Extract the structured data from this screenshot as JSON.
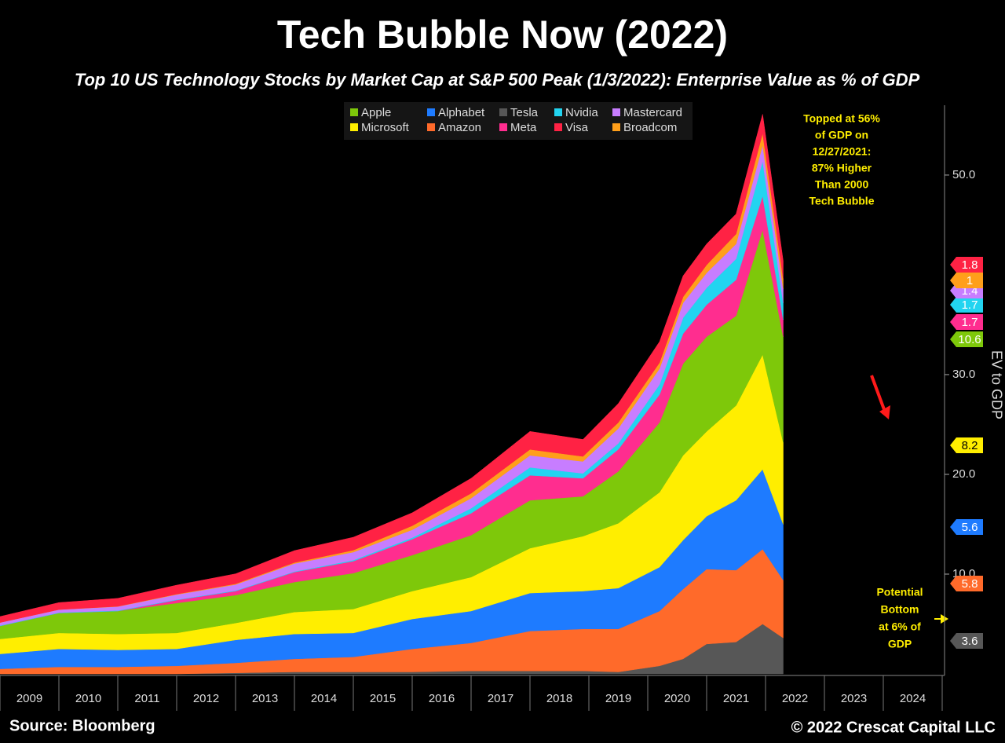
{
  "chart_data": {
    "type": "stacked_area",
    "title": "Tech Bubble Now (2022)",
    "subtitle": "Top 10 US Technology Stocks by Market Cap at S&P 500 Peak (1/3/2022): Enterprise Value as % of GDP",
    "y_axis_label": "EV to GDP",
    "source": "Source: Bloomberg",
    "copyright": "© 2022 Crescat Capital LLC",
    "annotations": [
      "Topped at 56%",
      "of GDP on",
      "12/27/2021:",
      "87% Higher",
      "Than 2000",
      "Tech Bubble"
    ],
    "bottom_annotation": [
      "Potential",
      "Bottom",
      "at 6% of",
      "GDP"
    ],
    "x": [
      2009.0,
      2010.0,
      2011.0,
      2012.0,
      2013.0,
      2014.0,
      2015.0,
      2016.0,
      2017.0,
      2018.0,
      2018.9,
      2019.5,
      2020.2,
      2020.6,
      2021.0,
      2021.5,
      2021.95,
      2022.3
    ],
    "xlim": [
      2009,
      2025
    ],
    "xticks": [
      2009,
      2010,
      2011,
      2012,
      2013,
      2014,
      2015,
      2016,
      2017,
      2018,
      2019,
      2020,
      2021,
      2022,
      2023,
      2024,
      2025
    ],
    "ylim": [
      0,
      57
    ],
    "yticks": [
      {
        "value": 10,
        "label": "10.0"
      },
      {
        "value": 20,
        "label": "20.0"
      },
      {
        "value": 30,
        "label": "30.0"
      },
      {
        "value": 50,
        "label": "50.0"
      }
    ],
    "series": [
      {
        "name": "Apple",
        "color": "#7ec80a",
        "end_value": 10.6,
        "values": [
          1.3,
          2.0,
          2.3,
          3.0,
          2.8,
          3.0,
          3.6,
          3.6,
          4.2,
          4.8,
          4.0,
          5.2,
          7.0,
          9.2,
          9.5,
          9.0,
          12.5,
          10.6
        ]
      },
      {
        "name": "Microsoft",
        "color": "#ffee00",
        "end_value": 8.2,
        "values": [
          1.5,
          1.6,
          1.6,
          1.6,
          1.7,
          2.2,
          2.4,
          2.8,
          3.4,
          4.5,
          5.5,
          6.5,
          7.5,
          8.5,
          8.5,
          9.5,
          11.5,
          8.2
        ]
      },
      {
        "name": "Alphabet",
        "color": "#1e7bff",
        "end_value": 5.6,
        "values": [
          1.5,
          1.8,
          1.7,
          1.7,
          2.3,
          2.5,
          2.4,
          3.0,
          3.2,
          3.8,
          3.8,
          4.1,
          4.4,
          4.9,
          5.3,
          7.0,
          8.0,
          5.6
        ]
      },
      {
        "name": "Amazon",
        "color": "#ff6a2a",
        "end_value": 5.8,
        "values": [
          0.5,
          0.7,
          0.7,
          0.8,
          1.0,
          1.3,
          1.5,
          2.3,
          2.8,
          4.0,
          4.2,
          4.3,
          5.5,
          7.0,
          7.5,
          7.2,
          7.5,
          5.8
        ]
      },
      {
        "name": "Tesla",
        "color": "#575757",
        "end_value": 3.6,
        "values": [
          0,
          0,
          0,
          0,
          0.1,
          0.2,
          0.2,
          0.2,
          0.3,
          0.3,
          0.3,
          0.2,
          0.8,
          1.5,
          3.0,
          3.2,
          5.0,
          3.6
        ]
      },
      {
        "name": "Meta",
        "color": "#ff2d8f",
        "end_value": 1.7,
        "values": [
          0,
          0,
          0,
          0.3,
          0.4,
          1.0,
          1.2,
          1.6,
          2.2,
          2.5,
          1.8,
          2.2,
          2.8,
          3.0,
          3.2,
          3.6,
          3.4,
          1.7
        ]
      },
      {
        "name": "Nvidia",
        "color": "#22d4f0",
        "end_value": 1.7,
        "values": [
          0.05,
          0.05,
          0.05,
          0.05,
          0.05,
          0.06,
          0.1,
          0.15,
          0.5,
          0.8,
          0.5,
          0.6,
          1.0,
          1.6,
          1.7,
          2.1,
          3.5,
          1.7
        ]
      },
      {
        "name": "Visa",
        "color": "#ff2244",
        "end_value": 1.8,
        "values": [
          0.6,
          0.7,
          0.8,
          0.9,
          1.0,
          1.2,
          1.3,
          1.3,
          1.5,
          1.8,
          1.7,
          1.9,
          2.1,
          2.1,
          2.1,
          2.0,
          1.9,
          1.8
        ]
      },
      {
        "name": "Mastercard",
        "color": "#c77dff",
        "end_value": 1.4,
        "values": [
          0.3,
          0.3,
          0.4,
          0.5,
          0.6,
          0.8,
          0.8,
          0.8,
          1.0,
          1.2,
          1.2,
          1.5,
          1.6,
          1.5,
          1.5,
          1.5,
          1.6,
          1.4
        ]
      },
      {
        "name": "Broadcom",
        "color": "#ff9f1a",
        "end_value": 1.0,
        "values": [
          0,
          0,
          0.02,
          0.05,
          0.08,
          0.1,
          0.2,
          0.4,
          0.5,
          0.6,
          0.5,
          0.6,
          0.6,
          0.6,
          0.8,
          1.0,
          1.2,
          1.0
        ]
      }
    ]
  }
}
